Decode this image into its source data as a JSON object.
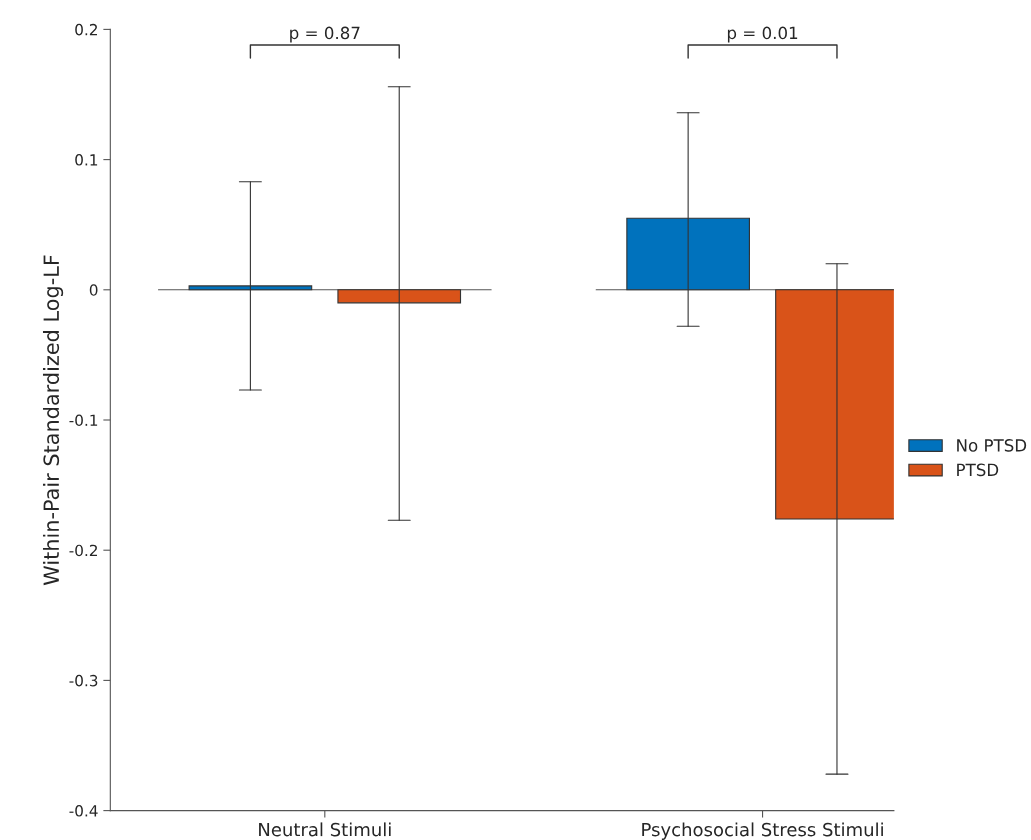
{
  "chart_data": {
    "type": "bar",
    "ylabel": "Within-Pair Standardized Log-LF",
    "categories": [
      "Neutral Stimuli",
      "Psychosocial Stress Stimuli"
    ],
    "series": [
      {
        "name": "No PTSD",
        "color": "#0072bd",
        "values": [
          0.003,
          0.055
        ],
        "errors": [
          [
            -0.077,
            0.083
          ],
          [
            -0.028,
            0.136
          ]
        ]
      },
      {
        "name": "PTSD",
        "color": "#d95319",
        "values": [
          -0.01,
          -0.176
        ],
        "errors": [
          [
            -0.177,
            0.156
          ],
          [
            -0.372,
            0.02
          ]
        ]
      }
    ],
    "ylim": [
      -0.4,
      0.2
    ],
    "yticks": [
      -0.4,
      -0.3,
      -0.2,
      -0.1,
      0,
      0.1,
      0.2
    ],
    "annotations": [
      "p = 0.87",
      "p = 0.01"
    ],
    "legend": "right"
  }
}
